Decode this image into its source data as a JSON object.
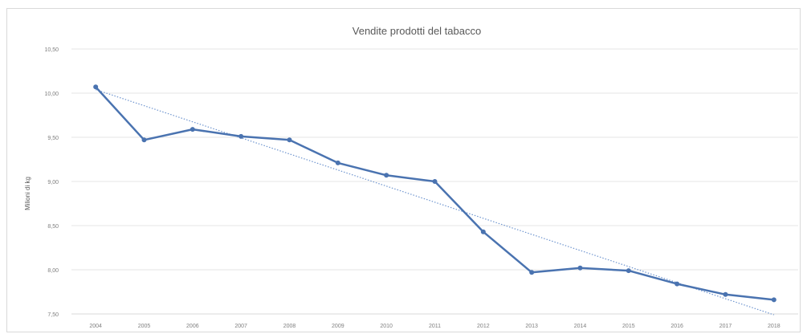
{
  "chart_data": {
    "type": "line",
    "title": "Vendite prodotti del tabacco",
    "xlabel": "",
    "ylabel": "Milioni di kg",
    "ylim": [
      7.5,
      10.5
    ],
    "yticks": [
      "10,50",
      "10,00",
      "9,50",
      "9,00",
      "8,50",
      "8,00",
      "7,50"
    ],
    "ytick_values": [
      10.5,
      10.0,
      9.5,
      9.0,
      8.5,
      8.0,
      7.5
    ],
    "categories": [
      "2004",
      "2005",
      "2006",
      "2007",
      "2008",
      "2009",
      "2010",
      "2011",
      "2012",
      "2013",
      "2014",
      "2015",
      "2016",
      "2017",
      "2018"
    ],
    "series": [
      {
        "values": [
          10.07,
          9.47,
          9.59,
          9.51,
          9.47,
          9.21,
          9.07,
          9.0,
          8.43,
          7.97,
          8.02,
          7.99,
          7.84,
          7.72,
          7.66
        ],
        "color": "#4a73b0"
      }
    ],
    "trendline": {
      "style": "dotted",
      "color": "#6f95cf",
      "start": 10.04,
      "end": 7.49
    },
    "grid": true,
    "legend": "none"
  }
}
